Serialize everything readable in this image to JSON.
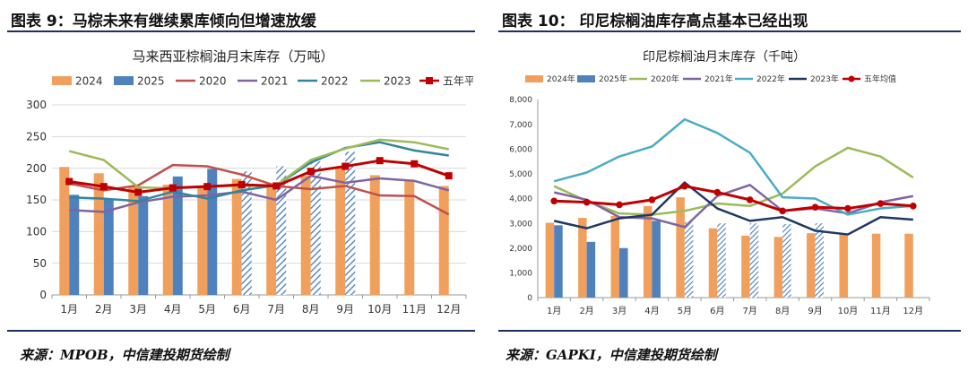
{
  "left": {
    "title": "图表 9：马棕未来有继续累库倾向但增速放缓",
    "source": "来源：MPOB，中信建投期货绘制"
  },
  "right": {
    "title": "图表 10： 印尼棕榈油库存高点基本已经出现",
    "source": "来源：GAPKI，中信建投期货绘制"
  },
  "chart_data": [
    {
      "type": "bar",
      "title": "马来西亚棕榈油月末库存（万吨）",
      "categories": [
        "1月",
        "2月",
        "3月",
        "4月",
        "5月",
        "6月",
        "7月",
        "8月",
        "9月",
        "10月",
        "11月",
        "12月"
      ],
      "ylim": [
        0,
        300
      ],
      "yticks": [
        "0",
        "50",
        "100",
        "150",
        "200",
        "250",
        "300"
      ],
      "grid": true,
      "legend_position": "top",
      "bar_series": [
        {
          "name": "2024",
          "color": "#f0a05c",
          "values": [
            202,
            192,
            171,
            174,
            172,
            183,
            172,
            188,
            200,
            189,
            182,
            172
          ]
        },
        {
          "name": "2025",
          "color": "#4f81bd",
          "values": [
            158,
            151,
            156,
            187,
            199,
            195,
            203,
            211,
            226,
            null,
            null,
            null
          ],
          "hatched_from_index": 5
        }
      ],
      "line_series": [
        {
          "name": "2020",
          "color": "#c0504d",
          "values": [
            176,
            165,
            173,
            205,
            203,
            190,
            172,
            167,
            172,
            157,
            156,
            127
          ]
        },
        {
          "name": "2021",
          "color": "#8064a2",
          "values": [
            134,
            131,
            146,
            155,
            157,
            163,
            150,
            188,
            177,
            184,
            180,
            165
          ]
        },
        {
          "name": "2022",
          "color": "#31859c",
          "values": [
            154,
            152,
            148,
            163,
            152,
            165,
            173,
            209,
            232,
            241,
            228,
            220
          ]
        },
        {
          "name": "2023",
          "color": "#9bbb59",
          "values": [
            227,
            213,
            170,
            168,
            172,
            172,
            173,
            213,
            231,
            245,
            241,
            230
          ]
        },
        {
          "name": "五年平均",
          "color": "#c00000",
          "marker": "square",
          "values": [
            179,
            171,
            162,
            169,
            171,
            174,
            172,
            195,
            203,
            212,
            207,
            188
          ]
        }
      ]
    },
    {
      "type": "bar",
      "title": "印尼棕榈油月末库存（千吨）",
      "categories": [
        "1月",
        "2月",
        "3月",
        "4月",
        "5月",
        "6月",
        "7月",
        "8月",
        "9月",
        "10月",
        "11月",
        "12月"
      ],
      "ylim": [
        0,
        8000
      ],
      "yticks": [
        "0",
        "1,000",
        "2,000",
        "3,000",
        "4,000",
        "5,000",
        "6,000",
        "7,000",
        "8,000"
      ],
      "grid": false,
      "legend_position": "top",
      "bar_series": [
        {
          "name": "2024年",
          "color": "#f0a05c",
          "values": [
            3020,
            3220,
            3300,
            3700,
            4050,
            2800,
            2500,
            2450,
            2600,
            2550,
            2580,
            2580
          ]
        },
        {
          "name": "2025年",
          "color": "#4f81bd",
          "values": [
            2920,
            2250,
            2000,
            3100,
            3050,
            3000,
            3000,
            2970,
            3000,
            null,
            null,
            null
          ],
          "hatched_from_index": 4
        }
      ],
      "line_series": [
        {
          "name": "2020年",
          "color": "#9bbb59",
          "values": [
            4500,
            3900,
            3400,
            3350,
            3500,
            3800,
            3700,
            4200,
            5300,
            6050,
            5700,
            4850
          ]
        },
        {
          "name": "2021年",
          "color": "#8064a2",
          "values": [
            4250,
            3950,
            3250,
            3200,
            2850,
            4100,
            4550,
            3500,
            3600,
            3400,
            3850,
            4100
          ]
        },
        {
          "name": "2022年",
          "color": "#4bacc6",
          "values": [
            4700,
            5050,
            5700,
            6100,
            7200,
            6650,
            5850,
            4050,
            4000,
            3350,
            3600,
            3700
          ]
        },
        {
          "name": "2023年",
          "color": "#1f3864",
          "values": [
            3100,
            2800,
            3200,
            3350,
            4650,
            3600,
            3100,
            3250,
            2700,
            2550,
            3250,
            3150
          ]
        },
        {
          "name": "五年均值",
          "color": "#c00000",
          "marker": "circle",
          "values": [
            3900,
            3850,
            3750,
            3950,
            4500,
            4250,
            3950,
            3500,
            3650,
            3600,
            3800,
            3700
          ]
        }
      ]
    }
  ]
}
